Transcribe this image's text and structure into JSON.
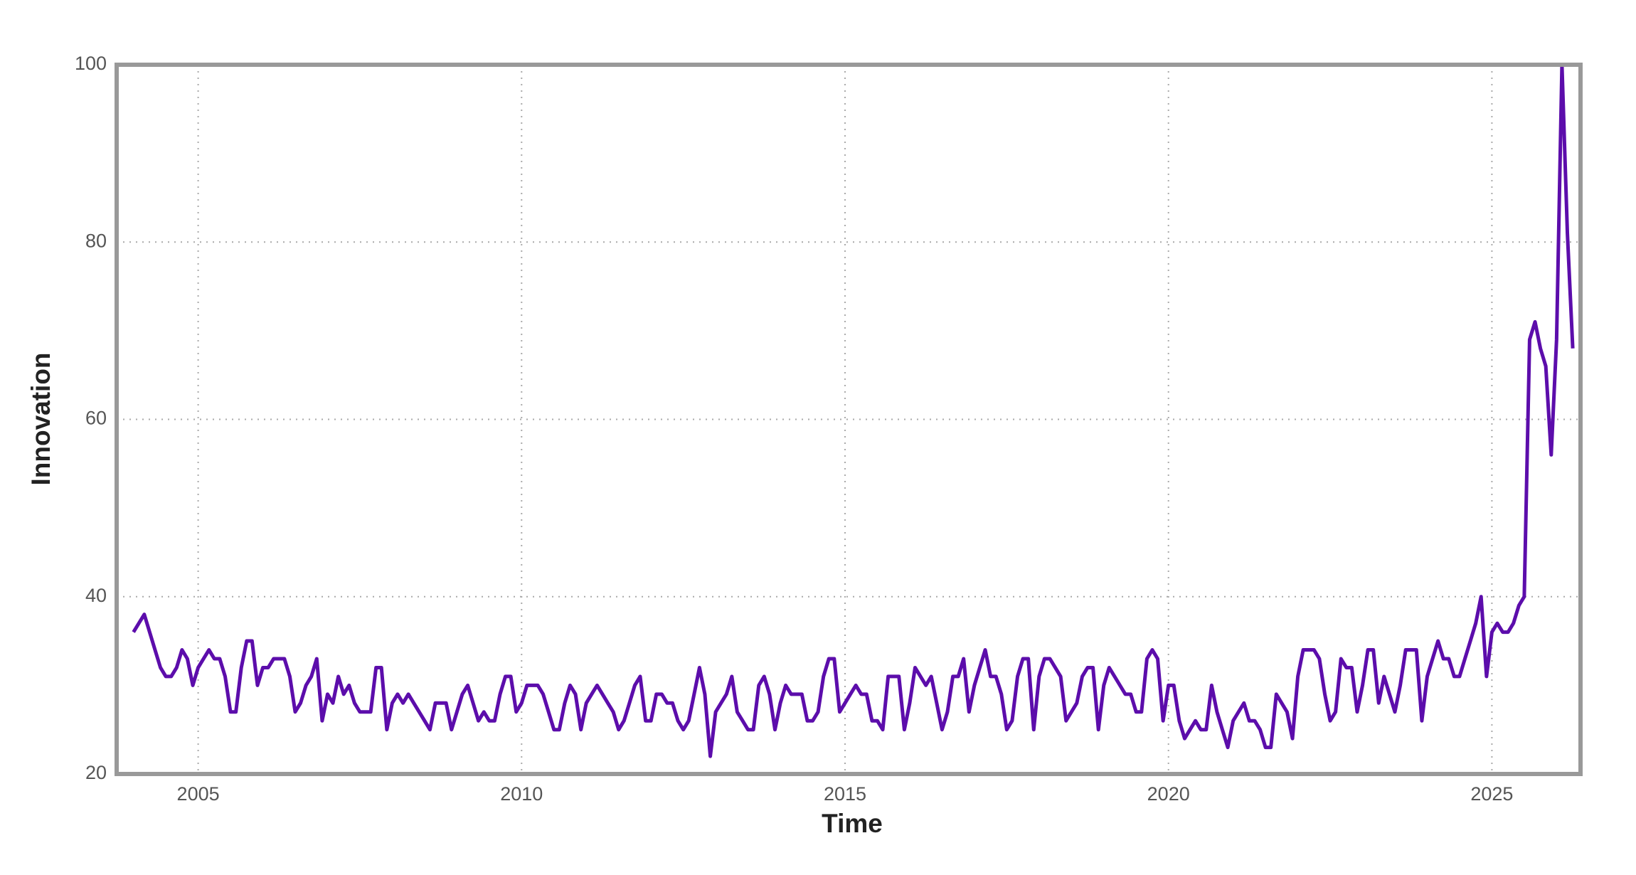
{
  "chart_data": {
    "type": "line",
    "x_label": "Time",
    "y_label": "Innovation",
    "color": "#5c0dab",
    "grid": true,
    "xlim": [
      2003.74,
      2026.37
    ],
    "xticks": [
      2005,
      2010,
      2015,
      2020,
      2025
    ],
    "ylim": [
      20,
      100
    ],
    "yticks": [
      20,
      40,
      60,
      80,
      100
    ],
    "x": [
      2004,
      2004.083,
      2004.167,
      2004.25,
      2004.333,
      2004.417,
      2004.5,
      2004.583,
      2004.667,
      2004.75,
      2004.833,
      2004.917,
      2005,
      2005.083,
      2005.167,
      2005.25,
      2005.333,
      2005.417,
      2005.5,
      2005.583,
      2005.667,
      2005.75,
      2005.833,
      2005.917,
      2006,
      2006.083,
      2006.167,
      2006.25,
      2006.333,
      2006.417,
      2006.5,
      2006.583,
      2006.667,
      2006.75,
      2006.833,
      2006.917,
      2007,
      2007.083,
      2007.167,
      2007.25,
      2007.333,
      2007.417,
      2007.5,
      2007.583,
      2007.667,
      2007.75,
      2007.833,
      2007.917,
      2008,
      2008.083,
      2008.167,
      2008.25,
      2008.333,
      2008.417,
      2008.5,
      2008.583,
      2008.667,
      2008.75,
      2008.833,
      2008.917,
      2009,
      2009.083,
      2009.167,
      2009.25,
      2009.333,
      2009.417,
      2009.5,
      2009.583,
      2009.667,
      2009.75,
      2009.833,
      2009.917,
      2010,
      2010.083,
      2010.167,
      2010.25,
      2010.333,
      2010.417,
      2010.5,
      2010.583,
      2010.667,
      2010.75,
      2010.833,
      2010.917,
      2011,
      2011.083,
      2011.167,
      2011.25,
      2011.333,
      2011.417,
      2011.5,
      2011.583,
      2011.667,
      2011.75,
      2011.833,
      2011.917,
      2012,
      2012.083,
      2012.167,
      2012.25,
      2012.333,
      2012.417,
      2012.5,
      2012.583,
      2012.667,
      2012.75,
      2012.833,
      2012.917,
      2013,
      2013.083,
      2013.167,
      2013.25,
      2013.333,
      2013.417,
      2013.5,
      2013.583,
      2013.667,
      2013.75,
      2013.833,
      2013.917,
      2014,
      2014.083,
      2014.167,
      2014.25,
      2014.333,
      2014.417,
      2014.5,
      2014.583,
      2014.667,
      2014.75,
      2014.833,
      2014.917,
      2015,
      2015.083,
      2015.167,
      2015.25,
      2015.333,
      2015.417,
      2015.5,
      2015.583,
      2015.667,
      2015.75,
      2015.833,
      2015.917,
      2016,
      2016.083,
      2016.167,
      2016.25,
      2016.333,
      2016.417,
      2016.5,
      2016.583,
      2016.667,
      2016.75,
      2016.833,
      2016.917,
      2017,
      2017.083,
      2017.167,
      2017.25,
      2017.333,
      2017.417,
      2017.5,
      2017.583,
      2017.667,
      2017.75,
      2017.833,
      2017.917,
      2018,
      2018.083,
      2018.167,
      2018.25,
      2018.333,
      2018.417,
      2018.5,
      2018.583,
      2018.667,
      2018.75,
      2018.833,
      2018.917,
      2019,
      2019.083,
      2019.167,
      2019.25,
      2019.333,
      2019.417,
      2019.5,
      2019.583,
      2019.667,
      2019.75,
      2019.833,
      2019.917,
      2020,
      2020.083,
      2020.167,
      2020.25,
      2020.333,
      2020.417,
      2020.5,
      2020.583,
      2020.667,
      2020.75,
      2020.833,
      2020.917,
      2021,
      2021.083,
      2021.167,
      2021.25,
      2021.333,
      2021.417,
      2021.5,
      2021.583,
      2021.667,
      2021.75,
      2021.833,
      2021.917,
      2022,
      2022.083,
      2022.167,
      2022.25,
      2022.333,
      2022.417,
      2022.5,
      2022.583,
      2022.667,
      2022.75,
      2022.833,
      2022.917,
      2023,
      2023.083,
      2023.167,
      2023.25,
      2023.333,
      2023.417,
      2023.5,
      2023.583,
      2023.667,
      2023.75,
      2023.833,
      2023.917,
      2024,
      2024.083,
      2024.167,
      2024.25,
      2024.333,
      2024.417,
      2024.5,
      2024.583,
      2024.667,
      2024.75,
      2024.833,
      2024.917,
      2025,
      2025.083,
      2025.167,
      2025.25,
      2025.333,
      2025.417,
      2025.5,
      2025.583,
      2025.667,
      2025.75,
      2025.833,
      2025.917,
      2026,
      2026.083,
      2026.167,
      2026.25
    ],
    "values": [
      36,
      37,
      38,
      36,
      34,
      32,
      31,
      31,
      32,
      34,
      33,
      30,
      32,
      33,
      34,
      33,
      33,
      31,
      27,
      27,
      32,
      35,
      35,
      30,
      32,
      32,
      33,
      33,
      33,
      31,
      27,
      28,
      30,
      31,
      33,
      26,
      29,
      28,
      31,
      29,
      30,
      28,
      27,
      27,
      27,
      32,
      32,
      25,
      28,
      29,
      28,
      29,
      28,
      27,
      26,
      25,
      28,
      28,
      28,
      25,
      27,
      29,
      30,
      28,
      26,
      27,
      26,
      26,
      29,
      31,
      31,
      27,
      28,
      30,
      30,
      30,
      29,
      27,
      25,
      25,
      28,
      30,
      29,
      25,
      28,
      29,
      30,
      29,
      28,
      27,
      25,
      26,
      28,
      30,
      31,
      26,
      26,
      29,
      29,
      28,
      28,
      26,
      25,
      26,
      29,
      32,
      29,
      22,
      27,
      28,
      29,
      31,
      27,
      26,
      25,
      25,
      30,
      31,
      29,
      25,
      28,
      30,
      29,
      29,
      29,
      26,
      26,
      27,
      31,
      33,
      33,
      27,
      28,
      29,
      30,
      29,
      29,
      26,
      26,
      25,
      31,
      31,
      31,
      25,
      28,
      32,
      31,
      30,
      31,
      28,
      25,
      27,
      31,
      31,
      33,
      27,
      30,
      32,
      34,
      31,
      31,
      29,
      25,
      26,
      31,
      33,
      33,
      25,
      31,
      33,
      33,
      32,
      31,
      26,
      27,
      28,
      31,
      32,
      32,
      25,
      30,
      32,
      31,
      30,
      29,
      29,
      27,
      27,
      33,
      34,
      33,
      26,
      30,
      30,
      26,
      24,
      25,
      26,
      25,
      25,
      30,
      27,
      25,
      23,
      26,
      27,
      28,
      26,
      26,
      25,
      23,
      23,
      29,
      28,
      27,
      24,
      31,
      34,
      34,
      34,
      33,
      29,
      26,
      27,
      33,
      32,
      32,
      27,
      30,
      34,
      34,
      28,
      31,
      29,
      27,
      30,
      34,
      34,
      34,
      26,
      31,
      33,
      35,
      33,
      33,
      31,
      31,
      33,
      35,
      37,
      40,
      31,
      36,
      37,
      36,
      36,
      37,
      39,
      40,
      69,
      71,
      68,
      66,
      56,
      69,
      100,
      81,
      68
    ]
  }
}
